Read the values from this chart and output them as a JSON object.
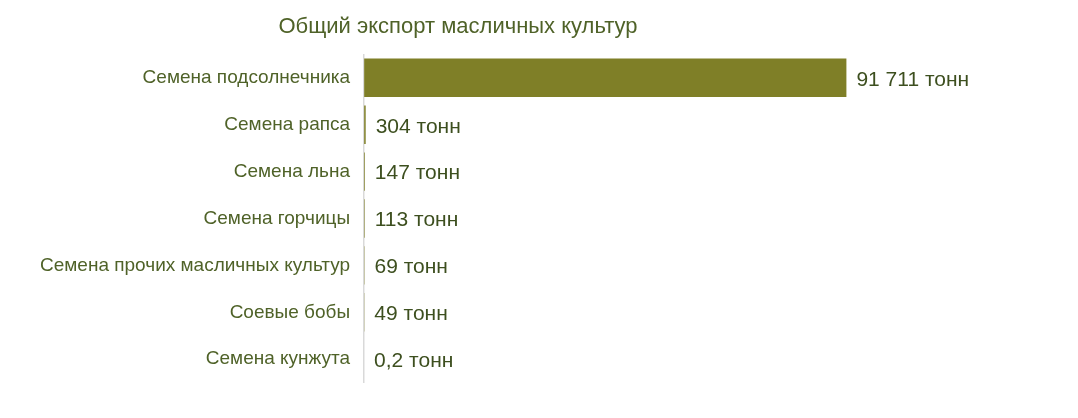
{
  "chart_data": {
    "type": "bar",
    "orientation": "horizontal",
    "title": "Общий экспорт масличных культур",
    "categories": [
      "Семена подсолнечника",
      "Семена рапса",
      "Семена льна",
      "Семена горчицы",
      "Семена прочих масличных культур",
      "Соевые бобы",
      "Семена кунжута"
    ],
    "values": [
      91711,
      304,
      147,
      113,
      69,
      49,
      0.2
    ],
    "value_labels": [
      "91 711 тонн",
      "304 тонн",
      "147 тонн",
      "113 тонн",
      "69 тонн",
      "49 тонн",
      "0,2 тонн"
    ],
    "color": "#7f7f27"
  }
}
